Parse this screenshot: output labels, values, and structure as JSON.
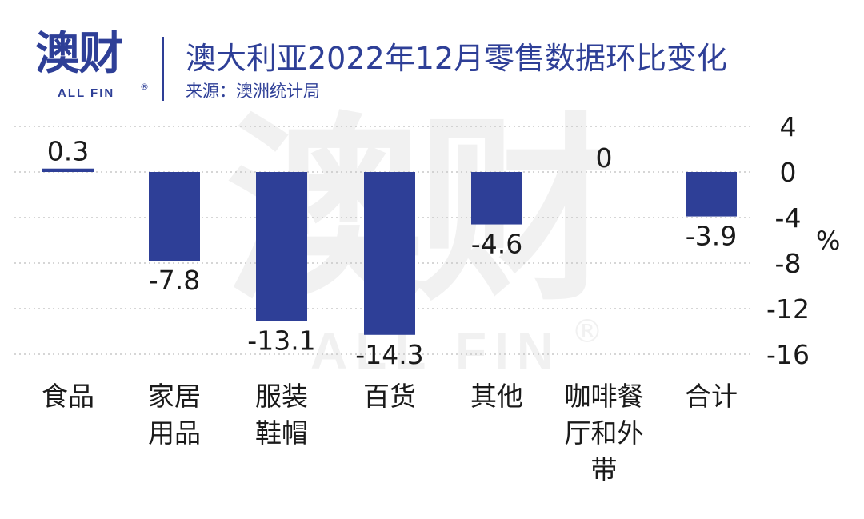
{
  "logo": {
    "text": "澳财",
    "sub": "ALL FIN",
    "reg": "®"
  },
  "header": {
    "title": "澳大利亚2022年12月零售数据环比变化",
    "source": "来源：澳洲统计局"
  },
  "watermark": {
    "text": "澳财",
    "sub": "ALL FIN",
    "reg": "®"
  },
  "chart_data": {
    "type": "bar",
    "categories": [
      "食品",
      "家居用品",
      "服装鞋帽",
      "百货",
      "其他",
      "咖啡餐厅和外带",
      "合计"
    ],
    "category_lines": [
      [
        "食品"
      ],
      [
        "家居",
        "用品"
      ],
      [
        "服装",
        "鞋帽"
      ],
      [
        "百货"
      ],
      [
        "其他"
      ],
      [
        "咖啡餐",
        "厅和外",
        "带"
      ],
      [
        "合计"
      ]
    ],
    "values": [
      0.3,
      -7.8,
      -13.1,
      -14.3,
      -4.6,
      0,
      -3.9
    ],
    "data_labels": [
      "0.3",
      "-7.8",
      "-13.1",
      "-14.3",
      "-4.6",
      "0",
      "-3.9"
    ],
    "yticks": [
      4,
      0,
      -4,
      -8,
      -12,
      -16
    ],
    "ylim": [
      -16,
      4
    ],
    "ylabel": "%",
    "grid": true,
    "bar_color": "#2e3f97",
    "grid_color": "#c8c8c8"
  }
}
